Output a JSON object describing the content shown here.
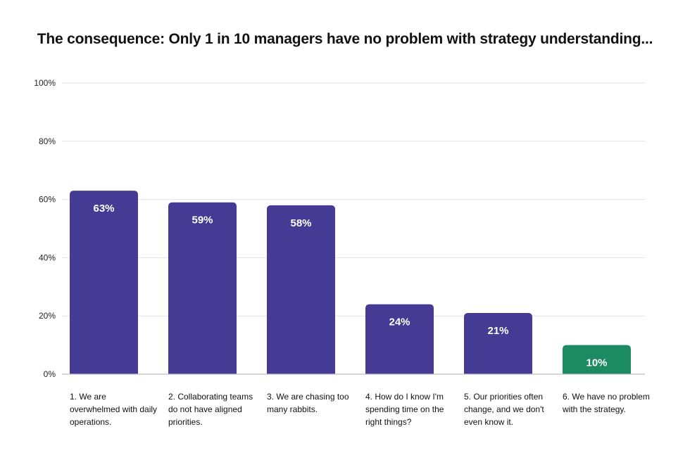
{
  "title": "The consequence: Only 1 in 10 managers have no problem with strategy understanding...",
  "chart_data": {
    "type": "bar",
    "title": "The consequence: Only 1 in 10 managers have no problem with strategy understanding...",
    "categories": [
      "1. We are overwhelmed with daily operations.",
      "2. Collaborating teams do not have aligned priorities.",
      "3. We are chasing too many rabbits.",
      "4. How do I know I'm spending time on the right things?",
      "5. Our priorities often change, and we don't even know it.",
      "6. We have no problem with the strategy."
    ],
    "values": [
      63,
      59,
      58,
      24,
      21,
      10
    ],
    "value_labels": [
      "63%",
      "59%",
      "58%",
      "24%",
      "21%",
      "10%"
    ],
    "colors": [
      "#453a94",
      "#453a94",
      "#453a94",
      "#453a94",
      "#453a94",
      "#1c8a62"
    ],
    "ylim": [
      0,
      100
    ],
    "yticks": [
      0,
      20,
      40,
      60,
      80,
      100
    ],
    "ytick_labels": [
      "0%",
      "20%",
      "40%",
      "60%",
      "80%",
      "100%"
    ],
    "xlabel": "",
    "ylabel": "",
    "grid": true
  }
}
